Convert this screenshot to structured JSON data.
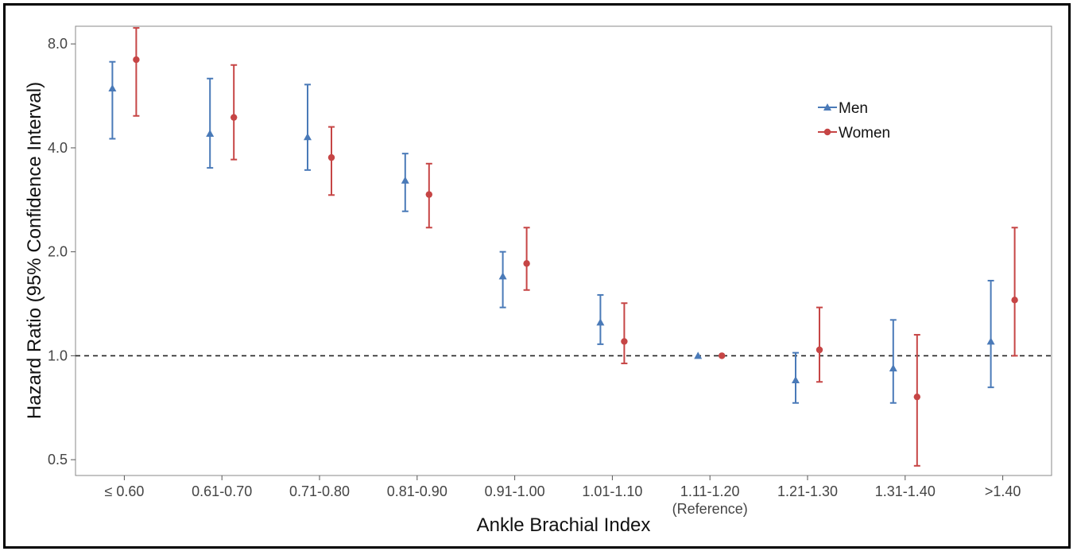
{
  "chart_data": {
    "type": "scatter",
    "subtype": "error-bar",
    "xlabel": "Ankle Brachial Index",
    "ylabel": "Hazard Ratio (95% Confidence Interval)",
    "y_scale": "log2",
    "ylim": [
      0.45,
      9.0
    ],
    "y_ticks": [
      {
        "value": 0.5,
        "label": "0.5"
      },
      {
        "value": 1.0,
        "label": "1.0"
      },
      {
        "value": 2.0,
        "label": "2.0"
      },
      {
        "value": 4.0,
        "label": "4.0"
      },
      {
        "value": 8.0,
        "label": "8.0"
      }
    ],
    "categories": [
      "≤ 0.60",
      "0.61-0.70",
      "0.71-0.80",
      "0.81-0.90",
      "0.91-1.00",
      "1.01-1.10",
      "1.11-1.20",
      "1.21-1.30",
      "1.31-1.40",
      ">1.40"
    ],
    "reference_category": {
      "index": 6,
      "note": "(Reference)"
    },
    "reference_line": {
      "y": 1.0,
      "style": "dashed"
    },
    "grid": false,
    "legend": {
      "position": "top-right"
    },
    "series": [
      {
        "name": "Men",
        "marker": "triangle",
        "color": "#4a7ab8",
        "values": [
          5.95,
          4.4,
          4.3,
          3.22,
          1.7,
          1.25,
          1.0,
          0.85,
          0.92,
          1.1
        ],
        "lower": [
          4.25,
          3.5,
          3.45,
          2.62,
          1.38,
          1.08,
          1.0,
          0.73,
          0.73,
          0.81
        ],
        "upper": [
          7.1,
          6.35,
          6.1,
          3.85,
          2.0,
          1.5,
          1.0,
          1.02,
          1.27,
          1.65
        ]
      },
      {
        "name": "Women",
        "marker": "circle",
        "color": "#c64545",
        "values": [
          7.2,
          4.9,
          3.75,
          2.93,
          1.85,
          1.1,
          1.0,
          1.04,
          0.76,
          1.45
        ],
        "lower": [
          4.95,
          3.7,
          2.92,
          2.35,
          1.55,
          0.95,
          1.0,
          0.84,
          0.48,
          1.0
        ],
        "upper": [
          8.9,
          6.95,
          4.6,
          3.6,
          2.35,
          1.42,
          1.0,
          1.38,
          1.15,
          2.35
        ]
      }
    ]
  }
}
